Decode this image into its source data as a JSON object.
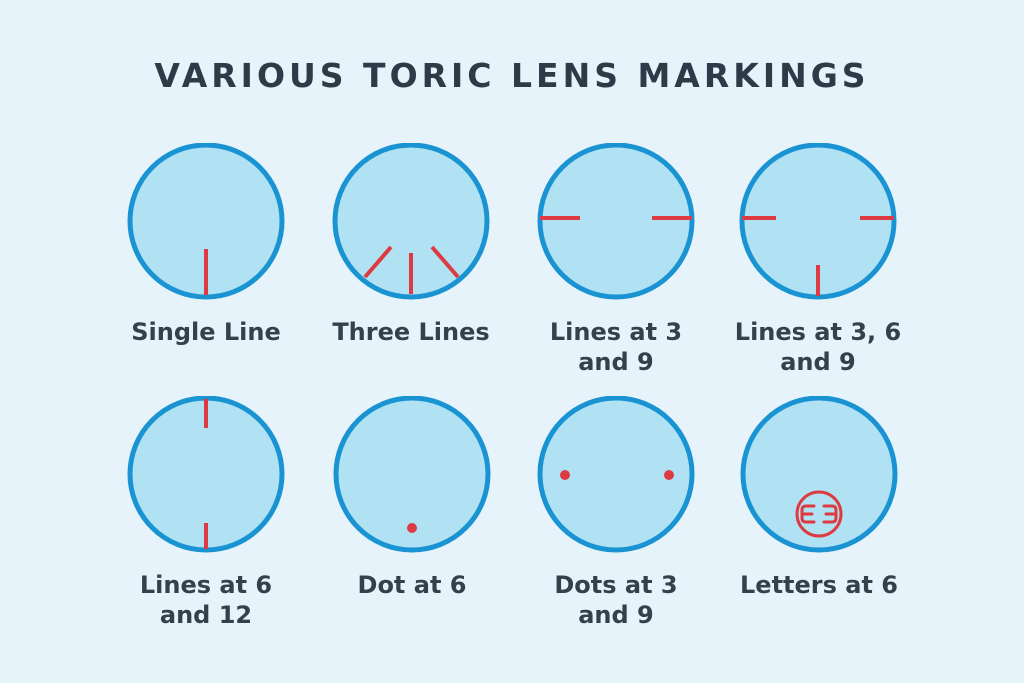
{
  "title": "VARIOUS TORIC LENS MARKINGS",
  "colors": {
    "background": "#e6f3fb",
    "lens_fill": "#b1e2f3",
    "lens_border": "#1a93d2",
    "marking": "#dd3b41",
    "text": "#34404c"
  },
  "lenses": [
    {
      "label": "Single Line",
      "marking": "single-line"
    },
    {
      "label": "Three Lines",
      "marking": "three-lines"
    },
    {
      "label": "Lines at 3\nand 9",
      "marking": "lines-3-9"
    },
    {
      "label": "Lines at 3, 6\nand 9",
      "marking": "lines-3-6-9"
    },
    {
      "label": "Lines at 6\nand 12",
      "marking": "lines-6-12"
    },
    {
      "label": "Dot at 6",
      "marking": "dot-6"
    },
    {
      "label": "Dots at 3\nand 9",
      "marking": "dots-3-9"
    },
    {
      "label": "Letters at 6",
      "marking": "letters-6"
    }
  ]
}
